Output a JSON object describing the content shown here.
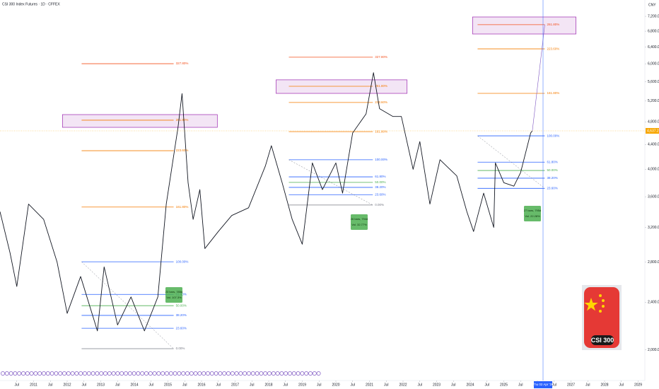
{
  "chart_data": {
    "type": "line",
    "title": "CSI 300 Index Futures · 1D · CFFEX",
    "currency": "CNY",
    "last_price": {
      "value": 4637.2,
      "label": "4,637.2"
    },
    "crosshair_label": "Thu 02 Apr '26",
    "logo_text": "CSI 300",
    "log_scale": true,
    "grid": false,
    "xlim": [
      2010.0,
      2029.2
    ],
    "ylim": [
      1777,
      7666
    ],
    "xticks": [
      {
        "value": 2010.5,
        "label": "Jul"
      },
      2011,
      {
        "value": 2011.5,
        "label": "Jul"
      },
      2012,
      {
        "value": 2012.5,
        "label": "Jul"
      },
      2013,
      {
        "value": 2013.5,
        "label": "Jul"
      },
      2014,
      {
        "value": 2014.5,
        "label": "Jul"
      },
      2015,
      {
        "value": 2015.5,
        "label": "Jul"
      },
      2016,
      {
        "value": 2016.5,
        "label": "Jul"
      },
      2017,
      {
        "value": 2017.5,
        "label": "Jul"
      },
      2018,
      {
        "value": 2018.5,
        "label": "Jul"
      },
      2019,
      {
        "value": 2019.5,
        "label": "Jul"
      },
      2020,
      {
        "value": 2020.5,
        "label": "Jul"
      },
      2021,
      {
        "value": 2021.5,
        "label": "Jul"
      },
      2022,
      {
        "value": 2022.5,
        "label": "Jul"
      },
      2023,
      {
        "value": 2023.5,
        "label": "Jul"
      },
      2024,
      {
        "value": 2024.5,
        "label": "Jul"
      },
      2025,
      {
        "value": 2025.5,
        "label": "Jul"
      },
      2026,
      {
        "value": 2026.5,
        "label": "Jul"
      },
      2027,
      {
        "value": 2027.5,
        "label": "Jul"
      },
      2028,
      {
        "value": 2028.5,
        "label": "Jul"
      },
      2029
    ],
    "yticks": [
      {
        "value": 2000,
        "label": "2,000.0"
      },
      {
        "value": 2400,
        "label": "2,400.0"
      },
      {
        "value": 2800,
        "label": "2,800.0"
      },
      {
        "value": 3200,
        "label": "3,200.0"
      },
      {
        "value": 3600,
        "label": "3,600.0"
      },
      {
        "value": 4000,
        "label": "4,000.0"
      },
      {
        "value": 4400,
        "label": "4,400.0"
      },
      {
        "value": 4800,
        "label": "4,800.0"
      },
      {
        "value": 5200,
        "label": "5,200.0"
      },
      {
        "value": 5600,
        "label": "5,600.0"
      },
      {
        "value": 6000,
        "label": "6,000.0"
      },
      {
        "value": 6400,
        "label": "6,400.0"
      },
      {
        "value": 6800,
        "label": "6,800.0"
      },
      {
        "value": 7200,
        "label": "7,200.0"
      }
    ],
    "series": [
      {
        "name": "CSI 300 Index Futures",
        "color": "#131722",
        "x": [
          2010.0,
          2010.3,
          2010.5,
          2010.85,
          2011.3,
          2011.7,
          2012.0,
          2012.4,
          2012.9,
          2013.1,
          2013.5,
          2013.9,
          2014.3,
          2014.7,
          2014.95,
          2015.3,
          2015.42,
          2015.6,
          2015.75,
          2015.95,
          2016.1,
          2016.5,
          2016.9,
          2017.4,
          2017.9,
          2018.08,
          2018.4,
          2018.7,
          2019.0,
          2019.3,
          2019.6,
          2020.0,
          2020.2,
          2020.5,
          2020.9,
          2021.12,
          2021.3,
          2021.7,
          2021.95,
          2022.3,
          2022.5,
          2022.8,
          2023.1,
          2023.6,
          2023.9,
          2024.1,
          2024.4,
          2024.7,
          2024.75,
          2025.0,
          2025.3,
          2025.5,
          2025.8,
          2025.85
        ],
        "values": [
          3400,
          2900,
          2550,
          3500,
          3300,
          2800,
          2300,
          2650,
          2150,
          2750,
          2200,
          2450,
          2150,
          2450,
          3500,
          4700,
          5350,
          3800,
          3300,
          3700,
          2950,
          3150,
          3350,
          3450,
          4050,
          4380,
          3800,
          3300,
          3000,
          4100,
          3700,
          4100,
          3650,
          4600,
          4950,
          5800,
          5050,
          4900,
          4900,
          4000,
          4450,
          3500,
          4150,
          3900,
          3400,
          3150,
          3650,
          3200,
          4100,
          3800,
          3750,
          3950,
          4600,
          4637
        ]
      }
    ],
    "zones": [
      {
        "x": [
          2011.86,
          2016.47
        ],
        "y": [
          4700,
          4936
        ]
      },
      {
        "x": [
          2018.22,
          2022.12
        ],
        "y": [
          5355,
          5641
        ]
      },
      {
        "x": [
          2024.07,
          2027.15
        ],
        "y": [
          6728,
          7182
        ]
      }
    ],
    "fib_levels": [
      {
        "x": [
          2012.43,
          2015.17
        ],
        "levels": [
          {
            "value": 2008,
            "label": "0.00%",
            "color": "#787b86"
          },
          {
            "value": 2172,
            "label": "23.60%",
            "color": "#2962ff"
          },
          {
            "value": 2282,
            "label": "38.20%",
            "color": "#2962ff"
          },
          {
            "value": 2369,
            "label": "50.00%",
            "color": "#4caf50"
          },
          {
            "value": 2474,
            "label": "61.80%",
            "color": "#2962ff"
          },
          {
            "value": 2804,
            "label": "100.00%",
            "color": "#2962ff"
          },
          {
            "value": 3460,
            "label": "161.80%",
            "color": "#f57c00"
          },
          {
            "value": 4297,
            "label": "223.60%",
            "color": "#f57c00"
          },
          {
            "value": 4831,
            "label": "261.80%",
            "color": "#f57c00"
          },
          {
            "value": 6002,
            "label": "327.80%",
            "color": "#f4511e"
          }
        ]
      },
      {
        "x": [
          2018.6,
          2021.1
        ],
        "levels": [
          {
            "value": 3487,
            "label": "0.00%",
            "color": "#787b86"
          },
          {
            "value": 3629,
            "label": "23.60%",
            "color": "#2962ff"
          },
          {
            "value": 3732,
            "label": "38.20%",
            "color": "#2962ff"
          },
          {
            "value": 3804,
            "label": "50.00%",
            "color": "#4caf50"
          },
          {
            "value": 3886,
            "label": "61.80%",
            "color": "#2962ff"
          },
          {
            "value": 4150,
            "label": "100.00%",
            "color": "#2962ff"
          },
          {
            "value": 4623,
            "label": "161.80%",
            "color": "#f57c00"
          },
          {
            "value": 5171,
            "label": "223.60%",
            "color": "#f57c00"
          },
          {
            "value": 5503,
            "label": "261.80%",
            "color": "#f57c00"
          },
          {
            "value": 6153,
            "label": "327.80%",
            "color": "#f4511e"
          }
        ]
      },
      {
        "x": [
          2024.22,
          2026.22
        ],
        "levels": [
          {
            "value": 3718,
            "label": "23.60%",
            "color": "#2962ff"
          },
          {
            "value": 3866,
            "label": "38.20%",
            "color": "#2962ff"
          },
          {
            "value": 3982,
            "label": "50.00%",
            "color": "#4caf50"
          },
          {
            "value": 4112,
            "label": "61.80%",
            "color": "#2962ff"
          },
          {
            "value": 4549,
            "label": "100.00%",
            "color": "#2962ff"
          },
          {
            "value": 5355,
            "label": "161.80%",
            "color": "#f57c00"
          },
          {
            "value": 6354,
            "label": "223.60%",
            "color": "#f57c00"
          },
          {
            "value": 6973,
            "label": "261.80%",
            "color": "#f4511e"
          }
        ]
      }
    ],
    "annotations": [
      {
        "lines": [
          "23 bars, 785d",
          "Vol. 107.3%"
        ]
      },
      {
        "lines": [
          "26 bars, 794d",
          "Vol. 32.77%"
        ]
      },
      {
        "lines": [
          "27 bars, 795d",
          "Vol. 22.28%"
        ]
      }
    ]
  }
}
